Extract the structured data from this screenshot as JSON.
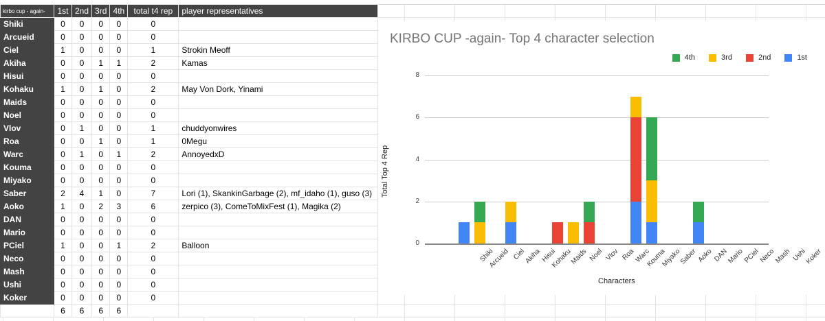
{
  "sheet": {
    "corner_label": "kirbo cup - again-",
    "headers": [
      "1st",
      "2nd",
      "3rd",
      "4th",
      "total t4 rep",
      "player representatives"
    ],
    "rows": [
      {
        "name": "Shiki",
        "first": "0",
        "second": "0",
        "third": "0",
        "fourth": "0",
        "total": "0",
        "reps": ""
      },
      {
        "name": "Arcueid",
        "first": "0",
        "second": "0",
        "third": "0",
        "fourth": "0",
        "total": "0",
        "reps": ""
      },
      {
        "name": "Ciel",
        "first": "1",
        "second": "0",
        "third": "0",
        "fourth": "0",
        "total": "1",
        "reps": "Strokin Meoff"
      },
      {
        "name": "Akiha",
        "first": "0",
        "second": "0",
        "third": "1",
        "fourth": "1",
        "total": "2",
        "reps": "Kamas"
      },
      {
        "name": "Hisui",
        "first": "0",
        "second": "0",
        "third": "0",
        "fourth": "0",
        "total": "0",
        "reps": ""
      },
      {
        "name": "Kohaku",
        "first": "1",
        "second": "0",
        "third": "1",
        "fourth": "0",
        "total": "2",
        "reps": "May Von Dork, Yinami"
      },
      {
        "name": "Maids",
        "first": "0",
        "second": "0",
        "third": "0",
        "fourth": "0",
        "total": "0",
        "reps": ""
      },
      {
        "name": "Noel",
        "first": "0",
        "second": "0",
        "third": "0",
        "fourth": "0",
        "total": "0",
        "reps": ""
      },
      {
        "name": "Vlov",
        "first": "0",
        "second": "1",
        "third": "0",
        "fourth": "0",
        "total": "1",
        "reps": "chuddyonwires"
      },
      {
        "name": "Roa",
        "first": "0",
        "second": "0",
        "third": "1",
        "fourth": "0",
        "total": "1",
        "reps": "0Megu"
      },
      {
        "name": "Warc",
        "first": "0",
        "second": "1",
        "third": "0",
        "fourth": "1",
        "total": "2",
        "reps": "AnnoyedxD"
      },
      {
        "name": "Kouma",
        "first": "0",
        "second": "0",
        "third": "0",
        "fourth": "0",
        "total": "0",
        "reps": ""
      },
      {
        "name": "Miyako",
        "first": "0",
        "second": "0",
        "third": "0",
        "fourth": "0",
        "total": "0",
        "reps": ""
      },
      {
        "name": "Saber",
        "first": "2",
        "second": "4",
        "third": "1",
        "fourth": "0",
        "total": "7",
        "reps": "Lori (1), SkankinGarbage (2), mf_idaho (1), guso (3)"
      },
      {
        "name": "Aoko",
        "first": "1",
        "second": "0",
        "third": "2",
        "fourth": "3",
        "total": "6",
        "reps": "zerpico (3), ComeToMixFest (1), Magika (2)"
      },
      {
        "name": "DAN",
        "first": "0",
        "second": "0",
        "third": "0",
        "fourth": "0",
        "total": "0",
        "reps": ""
      },
      {
        "name": "Mario",
        "first": "0",
        "second": "0",
        "third": "0",
        "fourth": "0",
        "total": "0",
        "reps": ""
      },
      {
        "name": "PCiel",
        "first": "1",
        "second": "0",
        "third": "0",
        "fourth": "1",
        "total": "2",
        "reps": "Balloon"
      },
      {
        "name": "Neco",
        "first": "0",
        "second": "0",
        "third": "0",
        "fourth": "0",
        "total": "0",
        "reps": ""
      },
      {
        "name": "Mash",
        "first": "0",
        "second": "0",
        "third": "0",
        "fourth": "0",
        "total": "0",
        "reps": ""
      },
      {
        "name": "Ushi",
        "first": "0",
        "second": "0",
        "third": "0",
        "fourth": "0",
        "total": "0",
        "reps": ""
      },
      {
        "name": "Koker",
        "first": "0",
        "second": "0",
        "third": "0",
        "fourth": "0",
        "total": "0",
        "reps": ""
      }
    ],
    "totals": {
      "first": "6",
      "second": "6",
      "third": "6",
      "fourth": "6"
    }
  },
  "colors": {
    "header_bg": "#434343",
    "first": "#4285f4",
    "second": "#ea4335",
    "third": "#fbbc04",
    "fourth": "#34a853"
  },
  "chart_data": {
    "type": "bar",
    "stacked": true,
    "title": "KIRBO CUP -again- Top 4 character selection",
    "xlabel": "Characters",
    "ylabel": "Total Top 4 Rep",
    "ylim": [
      0,
      8
    ],
    "yticks": [
      0,
      2,
      4,
      6,
      8
    ],
    "grid": true,
    "legend_position": "top-right",
    "legend": [
      "4th",
      "3rd",
      "2nd",
      "1st"
    ],
    "categories": [
      "Shiki",
      "Arcueid",
      "Ciel",
      "Akiha",
      "Hisui",
      "Kohaku",
      "Maids",
      "Noel",
      "Vlov",
      "Roa",
      "Warc",
      "Kouma",
      "Miyako",
      "Saber",
      "Aoko",
      "DAN",
      "Mario",
      "PCiel",
      "Neco",
      "Mash",
      "Ushi",
      "Koker"
    ],
    "series": [
      {
        "name": "1st",
        "color": "#4285f4",
        "values": [
          0,
          0,
          1,
          0,
          0,
          1,
          0,
          0,
          0,
          0,
          0,
          0,
          0,
          2,
          1,
          0,
          0,
          1,
          0,
          0,
          0,
          0
        ]
      },
      {
        "name": "2nd",
        "color": "#ea4335",
        "values": [
          0,
          0,
          0,
          0,
          0,
          0,
          0,
          0,
          1,
          0,
          1,
          0,
          0,
          4,
          0,
          0,
          0,
          0,
          0,
          0,
          0,
          0
        ]
      },
      {
        "name": "3rd",
        "color": "#fbbc04",
        "values": [
          0,
          0,
          0,
          1,
          0,
          1,
          0,
          0,
          0,
          1,
          0,
          0,
          0,
          1,
          2,
          0,
          0,
          0,
          0,
          0,
          0,
          0
        ]
      },
      {
        "name": "4th",
        "color": "#34a853",
        "values": [
          0,
          0,
          0,
          1,
          0,
          0,
          0,
          0,
          0,
          0,
          1,
          0,
          0,
          0,
          3,
          0,
          0,
          1,
          0,
          0,
          0,
          0
        ]
      }
    ]
  }
}
